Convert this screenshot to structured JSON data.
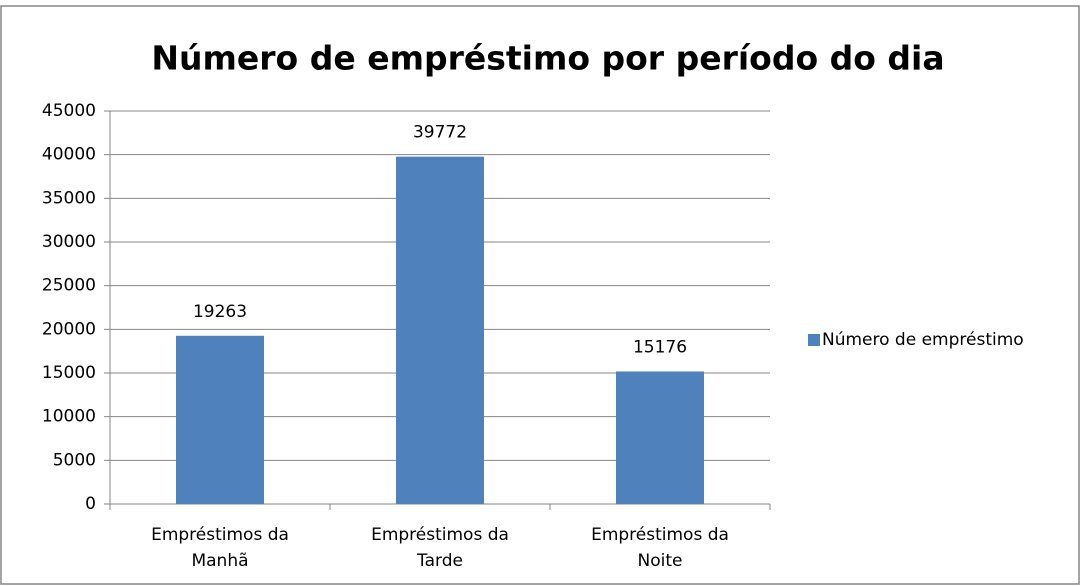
{
  "chart_data": {
    "type": "bar",
    "title": "Número de empréstimo por período do dia",
    "categories": [
      "Empréstimos da Manhã",
      "Empréstimos da Tarde",
      "Empréstimos da Noite"
    ],
    "series": [
      {
        "name": "Número de empréstimo",
        "color": "#4f81bd",
        "values": [
          19263,
          39772,
          15176
        ]
      }
    ],
    "ylim": [
      0,
      45000
    ],
    "yticks": [
      0,
      5000,
      10000,
      15000,
      20000,
      25000,
      30000,
      35000,
      40000,
      45000
    ],
    "grid": true,
    "legend": "right"
  }
}
